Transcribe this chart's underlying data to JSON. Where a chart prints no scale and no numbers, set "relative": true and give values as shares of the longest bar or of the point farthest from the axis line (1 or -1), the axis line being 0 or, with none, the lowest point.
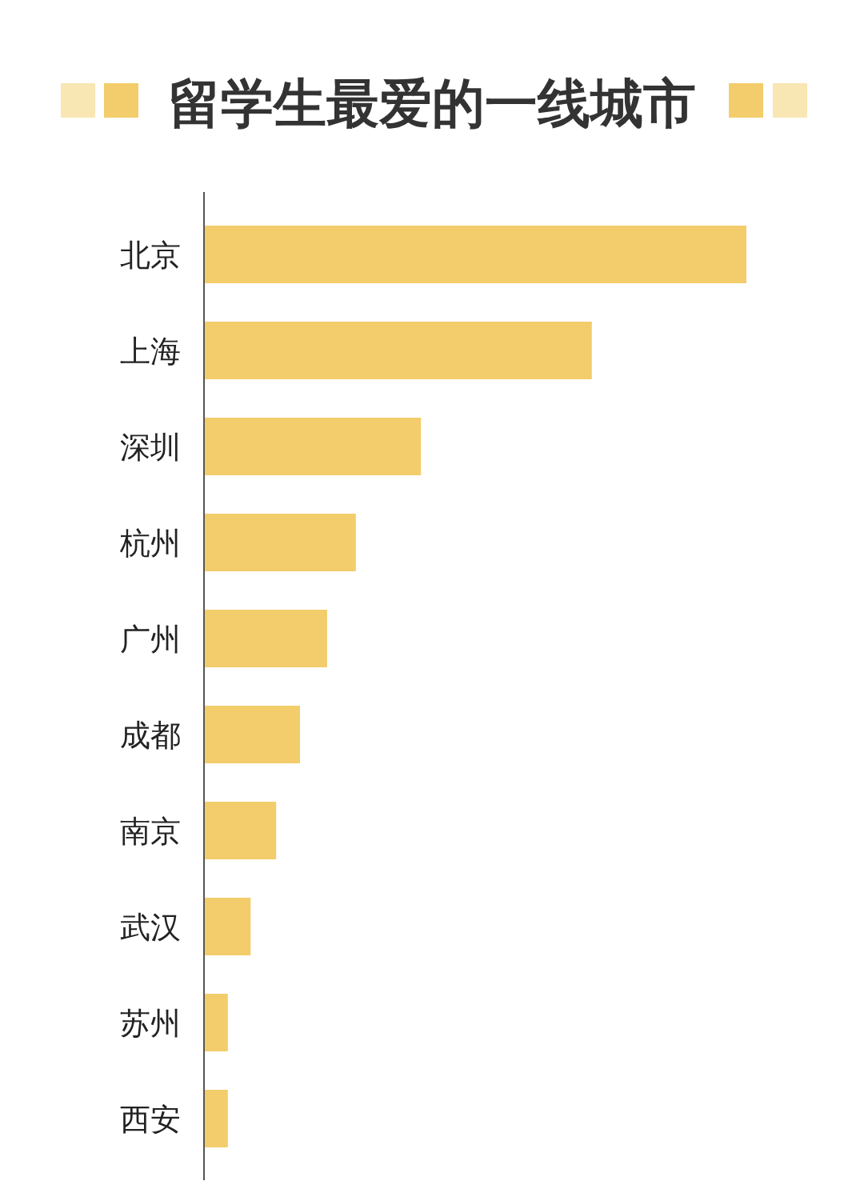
{
  "chart_data": {
    "type": "bar",
    "orientation": "horizontal",
    "relative": true,
    "title": "留学生最爱的一线城市",
    "categories": [
      "北京",
      "上海",
      "深圳",
      "杭州",
      "广州",
      "成都",
      "南京",
      "武汉",
      "苏州",
      "西安"
    ],
    "values": [
      1,
      0.715,
      0.4,
      0.28,
      0.227,
      0.177,
      0.133,
      0.086,
      0.044,
      0.044
    ],
    "color": "#f3cd6b"
  }
}
